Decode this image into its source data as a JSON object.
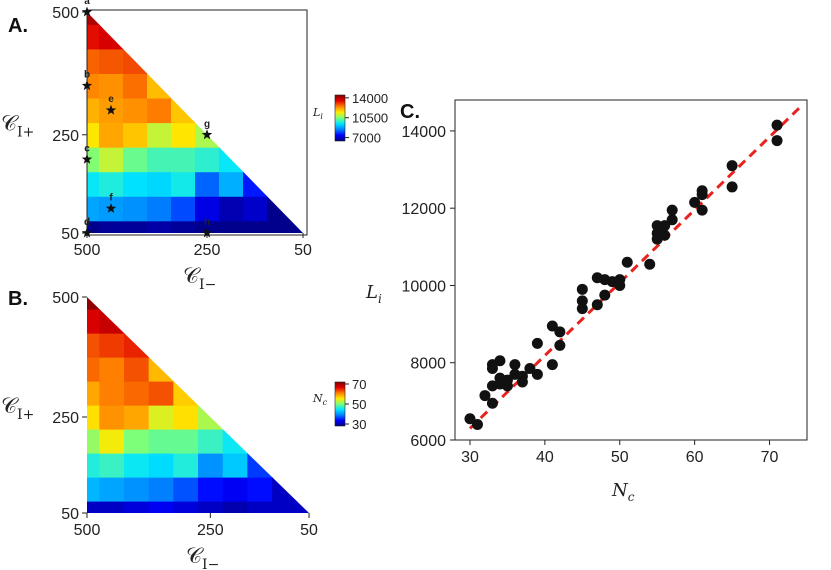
{
  "colors": {
    "jet": [
      "#00007f",
      "#0000ff",
      "#0080ff",
      "#00e5ff",
      "#7dff7a",
      "#ffea00",
      "#ff7f00",
      "#e10000",
      "#7f0000"
    ],
    "fit_line": "#e8231f",
    "point": "#111111"
  },
  "chart_data": [
    {
      "panel": "A.",
      "type": "heatmap",
      "xlabel": "𝒞_I−",
      "ylabel": "𝒞_I+",
      "x_ticks": [
        "500",
        "250",
        "50"
      ],
      "y_ticks": [
        "500",
        "250",
        "50"
      ],
      "x_range": [
        500,
        50
      ],
      "y_range": [
        50,
        500
      ],
      "colorbar": {
        "label": "L_i",
        "ticks": [
          "14000",
          "10500",
          "7000"
        ],
        "range": [
          6400,
          14500
        ]
      },
      "grid_x": [
        500,
        450,
        400,
        350,
        300,
        250,
        200,
        150,
        100,
        50
      ],
      "grid_y": [
        50,
        100,
        150,
        200,
        250,
        300,
        350,
        400,
        450,
        500
      ],
      "grid_values": [
        [
          6500,
          6600,
          6600,
          6700,
          6600,
          6500,
          6500,
          6500,
          6500,
          6500
        ],
        [
          8800,
          8700,
          8600,
          8400,
          8000,
          7200,
          6800,
          7000,
          6500,
          null
        ],
        [
          9500,
          9700,
          9400,
          9300,
          9600,
          8200,
          8900,
          7600,
          null,
          null
        ],
        [
          10500,
          11000,
          10300,
          10000,
          10000,
          9800,
          9500,
          null,
          null,
          null
        ],
        [
          11500,
          12100,
          11800,
          11000,
          11500,
          10800,
          null,
          null,
          null,
          null
        ],
        [
          12000,
          12200,
          12300,
          12500,
          11800,
          null,
          null,
          null,
          null,
          null
        ],
        [
          12400,
          12300,
          12600,
          11900,
          null,
          null,
          null,
          null,
          null,
          null
        ],
        [
          12700,
          12800,
          12900,
          null,
          null,
          null,
          null,
          null,
          null,
          null
        ],
        [
          13400,
          13600,
          null,
          null,
          null,
          null,
          null,
          null,
          null,
          null
        ],
        [
          14000,
          null,
          null,
          null,
          null,
          null,
          null,
          null,
          null,
          null
        ]
      ],
      "points": [
        {
          "name": "a",
          "cneg": 500,
          "cpos": 500
        },
        {
          "name": "b",
          "cneg": 500,
          "cpos": 350
        },
        {
          "name": "c",
          "cneg": 500,
          "cpos": 200
        },
        {
          "name": "d",
          "cneg": 500,
          "cpos": 50
        },
        {
          "name": "e",
          "cneg": 450,
          "cpos": 300
        },
        {
          "name": "f",
          "cneg": 450,
          "cpos": 100
        },
        {
          "name": "g",
          "cneg": 250,
          "cpos": 250
        },
        {
          "name": "h",
          "cneg": 250,
          "cpos": 50
        }
      ]
    },
    {
      "panel": "B.",
      "type": "heatmap",
      "xlabel": "𝒞_I−",
      "ylabel": "𝒞_I+",
      "x_ticks": [
        "500",
        "250",
        "50"
      ],
      "y_ticks": [
        "500",
        "250",
        "50"
      ],
      "x_range": [
        500,
        50
      ],
      "y_range": [
        50,
        500
      ],
      "colorbar": {
        "label": "N_c",
        "ticks": [
          "70",
          "50",
          "30"
        ],
        "range": [
          28,
          72
        ]
      },
      "grid_x": [
        500,
        450,
        400,
        350,
        300,
        250,
        200,
        150,
        100,
        50
      ],
      "grid_y": [
        50,
        100,
        150,
        200,
        250,
        300,
        350,
        400,
        450,
        500
      ],
      "grid_values": [
        [
          31,
          31,
          32,
          33,
          32,
          31,
          30,
          31,
          31,
          31
        ],
        [
          42,
          41,
          40,
          39,
          37,
          34,
          33,
          34,
          31,
          null
        ],
        [
          46,
          47,
          45,
          44,
          46,
          40,
          43,
          36,
          null,
          null
        ],
        [
          51,
          55,
          50,
          49,
          49,
          47,
          45,
          null,
          null,
          null
        ],
        [
          56,
          60,
          59,
          54,
          56,
          52,
          null,
          null,
          null,
          null
        ],
        [
          59,
          61,
          62,
          63,
          57,
          null,
          null,
          null,
          null,
          null
        ],
        [
          62,
          61,
          63,
          58,
          null,
          null,
          null,
          null,
          null,
          null
        ],
        [
          63,
          64,
          65,
          null,
          null,
          null,
          null,
          null,
          null,
          null
        ],
        [
          67,
          68,
          null,
          null,
          null,
          null,
          null,
          null,
          null,
          null
        ],
        [
          71,
          null,
          null,
          null,
          null,
          null,
          null,
          null,
          null,
          null
        ]
      ]
    },
    {
      "panel": "C.",
      "type": "scatter",
      "xlabel": "N_c",
      "ylabel": "L_i",
      "xlim": [
        28,
        75
      ],
      "ylim": [
        6000,
        14800
      ],
      "x_ticks": [
        30,
        40,
        50,
        60,
        70
      ],
      "y_ticks": [
        6000,
        8000,
        10000,
        12000,
        14000
      ],
      "x_tick_labels": [
        "30",
        "40",
        "50",
        "60",
        "70"
      ],
      "y_tick_labels": [
        "6000",
        "8000",
        "10000",
        "12000",
        "14000"
      ],
      "fit_line": {
        "x": [
          30,
          74
        ],
        "y": [
          6300,
          14600
        ]
      },
      "x": [
        30,
        31,
        32,
        33,
        33,
        33,
        33,
        34,
        34,
        34,
        35,
        35,
        36,
        36,
        37,
        37,
        38,
        39,
        39,
        41,
        41,
        42,
        42,
        45,
        45,
        45,
        47,
        47,
        48,
        48,
        49,
        50,
        50,
        51,
        54,
        55,
        55,
        55,
        56,
        56,
        57,
        57,
        60,
        61,
        61,
        61,
        65,
        65,
        71,
        71
      ],
      "y": [
        6550,
        6400,
        7150,
        6950,
        7400,
        7850,
        7950,
        7450,
        7600,
        8050,
        7400,
        7550,
        7950,
        7700,
        7500,
        7650,
        7850,
        7700,
        8500,
        7950,
        8950,
        8450,
        8800,
        9400,
        9600,
        9900,
        9500,
        10200,
        9750,
        10150,
        10100,
        10000,
        10150,
        10600,
        10550,
        11200,
        11350,
        11550,
        11300,
        11550,
        11700,
        11950,
        12150,
        12350,
        12450,
        11950,
        12550,
        13100,
        13750,
        14150
      ]
    }
  ]
}
